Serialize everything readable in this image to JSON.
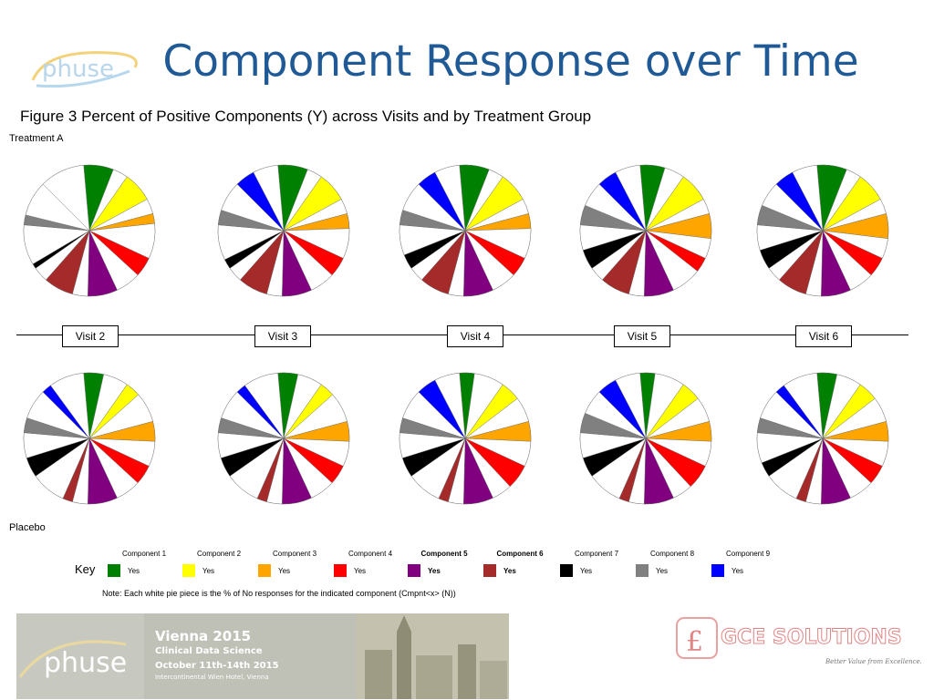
{
  "header": {
    "title": "Component Response over Time",
    "subtitle": "Figure 3   Percent of Positive Components (Y) across Visits and by Treatment Group",
    "logo_text": "phuse"
  },
  "groups": {
    "a_label": "Treatment A",
    "b_label": "Placebo"
  },
  "visits": [
    "Visit 2",
    "Visit 3",
    "Visit 4",
    "Visit 5",
    "Visit 6"
  ],
  "key": {
    "title": "Key",
    "items": [
      {
        "name": "Component 1",
        "value": "Yes",
        "color": "#008000"
      },
      {
        "name": "Component 2",
        "value": "Yes",
        "color": "#ffff00"
      },
      {
        "name": "Component 3",
        "value": "Yes",
        "color": "#ffa500"
      },
      {
        "name": "Component 4",
        "value": "Yes",
        "color": "#ff0000"
      },
      {
        "name": "Component 5",
        "value": "Yes",
        "color": "#800080",
        "bold": true
      },
      {
        "name": "Component 6",
        "value": "Yes",
        "color": "#a52a2a",
        "bold": true
      },
      {
        "name": "Component 7",
        "value": "Yes",
        "color": "#000000"
      },
      {
        "name": "Component 8",
        "value": "Yes",
        "color": "#808080"
      },
      {
        "name": "Component 9",
        "value": "Yes",
        "color": "#0000ff"
      }
    ]
  },
  "note": "Note: Each white pie piece is the % of No responses for the indicated component (Cmpnt<x> (N))",
  "footer": {
    "banner_logo": "phuse",
    "event_line1": "Vienna 2015",
    "event_line2": "Clinical Data Science",
    "event_line3": "October 11th-14th 2015",
    "event_line4": "Intercontinental Wien Hotel, Vienna",
    "sponsor_name": "GCE SOLUTIONS",
    "sponsor_tagline": "Better Value from Excellence..."
  },
  "chart_data": {
    "type": "pie",
    "component_colors": [
      "#008000",
      "#ffff00",
      "#ffa500",
      "#ff0000",
      "#800080",
      "#a52a2a",
      "#000000",
      "#808080",
      "#0000ff"
    ],
    "component_angle_fraction": {
      "note": "",
      "values": []
    },
    "panels": [
      {
        "group": "Treatment A",
        "visit": "Visit 2",
        "yes_pct": [
          66,
          66,
          22,
          44,
          66,
          66,
          11,
          22,
          0
        ]
      },
      {
        "group": "Treatment A",
        "visit": "Visit 3",
        "yes_pct": [
          66,
          66,
          33,
          44,
          66,
          66,
          22,
          33,
          44
        ]
      },
      {
        "group": "Treatment A",
        "visit": "Visit 4",
        "yes_pct": [
          66,
          66,
          33,
          44,
          66,
          66,
          33,
          33,
          44
        ]
      },
      {
        "group": "Treatment A",
        "visit": "Visit 5",
        "yes_pct": [
          55,
          66,
          55,
          33,
          66,
          66,
          44,
          44,
          44
        ]
      },
      {
        "group": "Treatment A",
        "visit": "Visit 6",
        "yes_pct": [
          66,
          66,
          55,
          44,
          66,
          66,
          44,
          44,
          44
        ]
      },
      {
        "group": "Placebo",
        "visit": "Visit 2",
        "yes_pct": [
          44,
          33,
          44,
          44,
          66,
          22,
          44,
          33,
          22
        ]
      },
      {
        "group": "Placebo",
        "visit": "Visit 3",
        "yes_pct": [
          44,
          33,
          44,
          44,
          66,
          22,
          44,
          33,
          22
        ]
      },
      {
        "group": "Placebo",
        "visit": "Visit 4",
        "yes_pct": [
          33,
          44,
          44,
          55,
          66,
          22,
          44,
          33,
          44
        ]
      },
      {
        "group": "Placebo",
        "visit": "Visit 5",
        "yes_pct": [
          33,
          44,
          44,
          55,
          66,
          22,
          44,
          44,
          44
        ]
      },
      {
        "group": "Placebo",
        "visit": "Visit 6",
        "yes_pct": [
          44,
          44,
          44,
          44,
          66,
          22,
          33,
          33,
          22
        ]
      }
    ]
  }
}
